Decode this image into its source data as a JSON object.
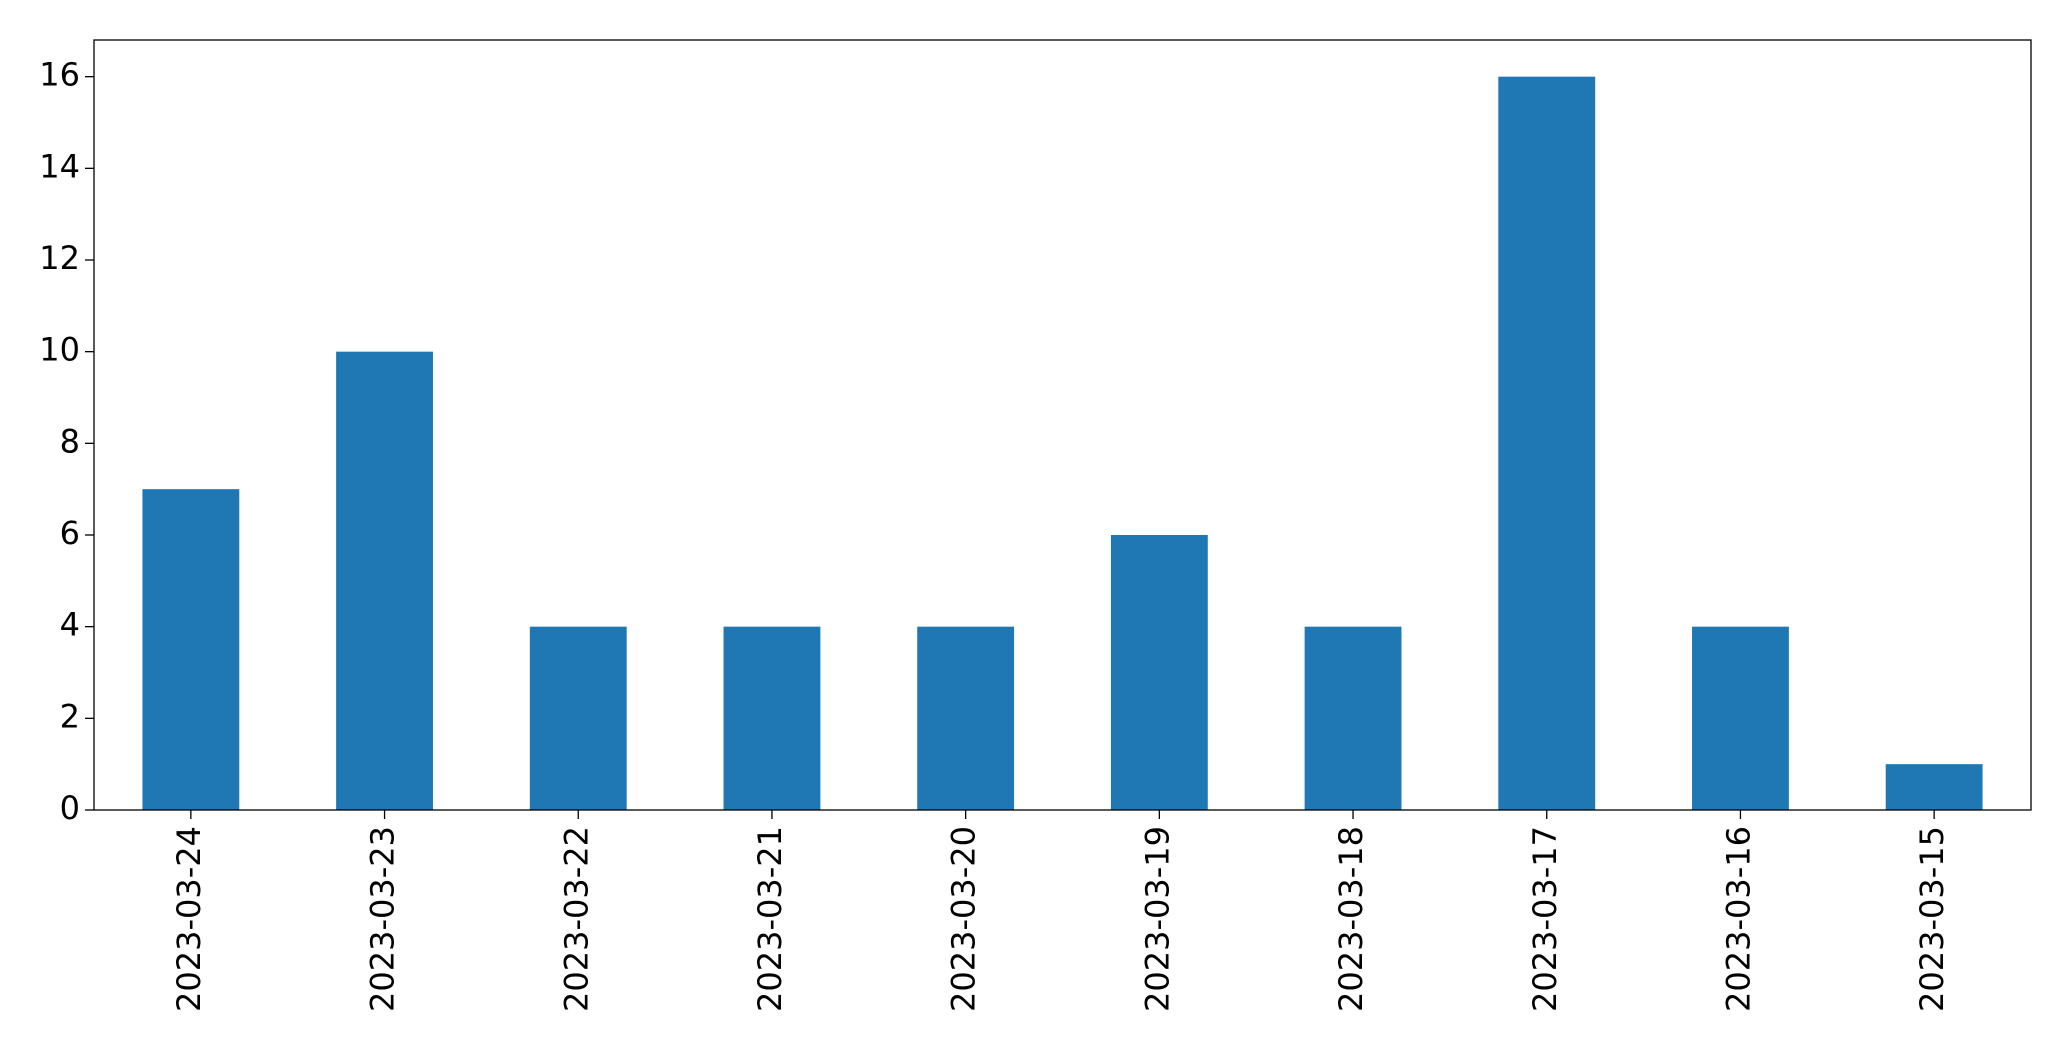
{
  "chart_data": {
    "type": "bar",
    "categories": [
      "2023-03-24",
      "2023-03-23",
      "2023-03-22",
      "2023-03-21",
      "2023-03-20",
      "2023-03-19",
      "2023-03-18",
      "2023-03-17",
      "2023-03-16",
      "2023-03-15"
    ],
    "values": [
      7,
      10,
      4,
      4,
      4,
      6,
      4,
      16,
      4,
      1
    ],
    "color": "#1f77b4",
    "ylim": [
      0,
      16.8
    ],
    "yticks": [
      0,
      2,
      4,
      6,
      8,
      10,
      12,
      14,
      16
    ],
    "grid": false
  }
}
